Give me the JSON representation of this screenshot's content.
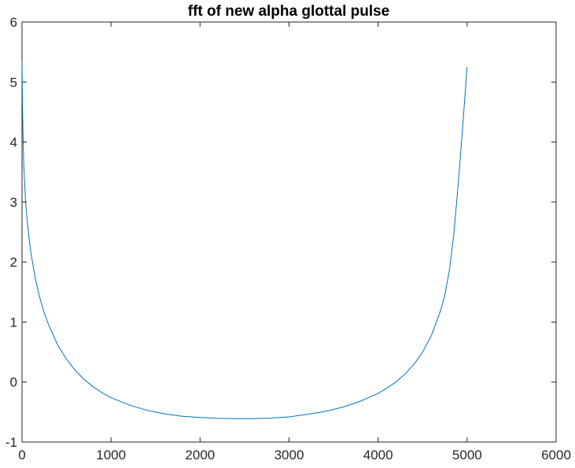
{
  "chart_data": {
    "type": "line",
    "title": "fft of new alpha glottal pulse",
    "xlabel": "",
    "ylabel": "",
    "xlim": [
      0,
      6000
    ],
    "ylim": [
      -1,
      6
    ],
    "xticks": [
      0,
      1000,
      2000,
      3000,
      4000,
      5000,
      6000
    ],
    "yticks": [
      -1,
      0,
      1,
      2,
      3,
      4,
      5,
      6
    ],
    "x_tick_labels": [
      "0",
      "1000",
      "2000",
      "3000",
      "4000",
      "5000",
      "6000"
    ],
    "y_tick_labels": [
      "-1",
      "0",
      "1",
      "2",
      "3",
      "4",
      "5",
      "6"
    ],
    "grid": false,
    "legend": "none",
    "line_color": "#0072BD",
    "axis_color": "#262626",
    "series": [
      {
        "x": [
          0,
          5,
          10,
          20,
          40,
          60,
          80,
          100,
          150,
          200,
          250,
          300,
          400,
          500,
          600,
          700,
          800,
          900,
          1000,
          1200,
          1400,
          1600,
          1800,
          2000,
          2200,
          2400,
          2500,
          2600,
          2800,
          3000,
          3200,
          3400,
          3600,
          3800,
          4000,
          4100,
          4200,
          4300,
          4400,
          4500,
          4600,
          4700,
          4750,
          4800,
          4850,
          4900,
          4940,
          4960,
          4980,
          4990,
          5000
        ],
        "y": [
          5.35,
          4.65,
          4.2,
          3.6,
          3.0,
          2.65,
          2.38,
          2.15,
          1.72,
          1.4,
          1.15,
          0.95,
          0.62,
          0.38,
          0.19,
          0.04,
          -0.08,
          -0.18,
          -0.26,
          -0.38,
          -0.47,
          -0.53,
          -0.57,
          -0.59,
          -0.605,
          -0.61,
          -0.61,
          -0.61,
          -0.6,
          -0.58,
          -0.54,
          -0.49,
          -0.42,
          -0.32,
          -0.19,
          -0.1,
          0.0,
          0.13,
          0.29,
          0.5,
          0.78,
          1.18,
          1.45,
          1.85,
          2.45,
          3.3,
          4.05,
          4.45,
          4.85,
          5.05,
          5.25
        ]
      }
    ]
  }
}
